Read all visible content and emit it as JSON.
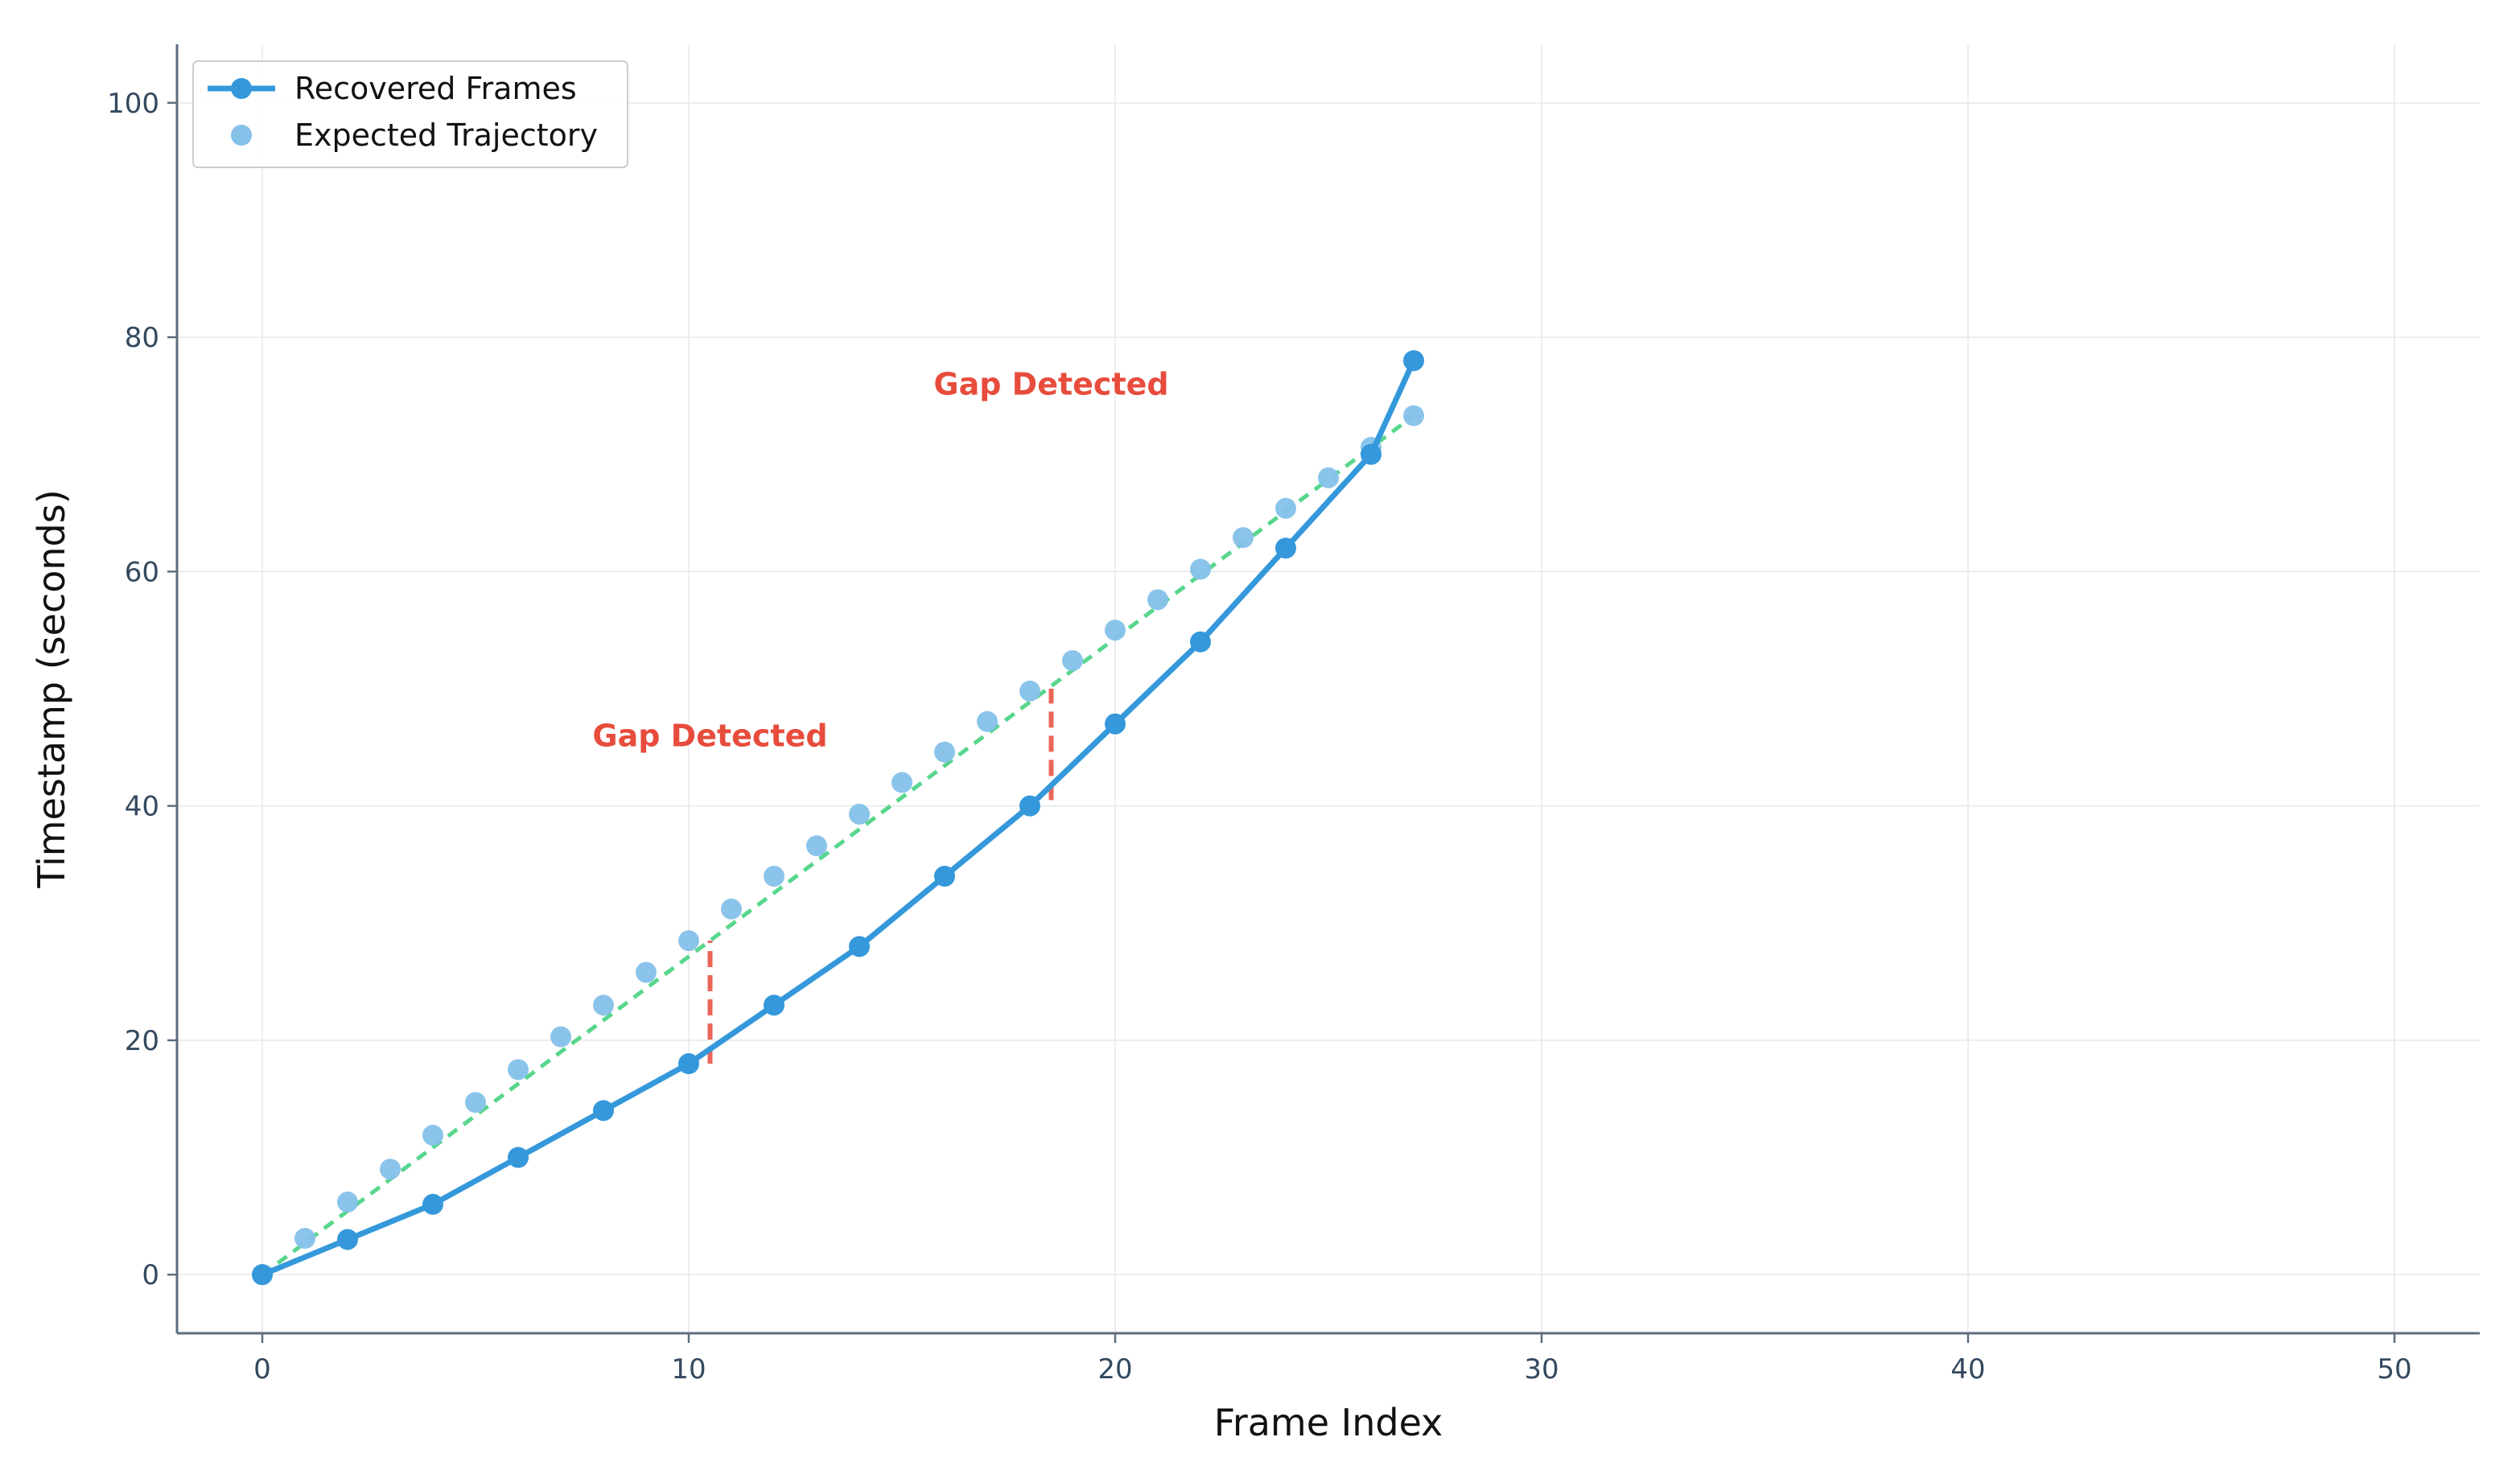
{
  "chart_data": {
    "type": "line",
    "title": "",
    "xlabel": "Frame Index",
    "ylabel": "Timestamp (seconds)",
    "xlim": [
      -2,
      52
    ],
    "ylim": [
      -5,
      105
    ],
    "xticks": [
      0,
      10,
      20,
      30,
      40,
      50
    ],
    "yticks": [
      0,
      20,
      40,
      60,
      80,
      100
    ],
    "grid": true,
    "legend_position": "top-left",
    "series": [
      {
        "name": "Recovered Frames",
        "style": "line+markers",
        "color": "#3498db",
        "x": [
          0,
          2,
          4,
          6,
          8,
          10,
          12,
          14,
          16,
          18,
          20,
          22,
          24,
          26,
          27
        ],
        "y": [
          0,
          3,
          6,
          10,
          14,
          18,
          23,
          28,
          34,
          40,
          47,
          54,
          62,
          70,
          78
        ]
      },
      {
        "name": "Expected Trajectory",
        "style": "markers",
        "color": "#85c1e9",
        "x": [
          0,
          1,
          2,
          3,
          4,
          5,
          6,
          7,
          8,
          9,
          10,
          11,
          12,
          13,
          14,
          15,
          16,
          17,
          18,
          19,
          20,
          21,
          22,
          23,
          24,
          25,
          26,
          27
        ],
        "y": [
          0,
          3.1,
          6.2,
          9.0,
          11.9,
          14.7,
          17.5,
          20.3,
          23.0,
          25.8,
          28.5,
          31.2,
          34.0,
          36.6,
          39.3,
          42.0,
          44.6,
          47.2,
          49.8,
          52.4,
          55.0,
          57.6,
          60.2,
          62.9,
          65.4,
          68.0,
          70.6,
          73.3
        ]
      }
    ],
    "trend_line": {
      "color": "#58d68d",
      "x": [
        0,
        27
      ],
      "y": [
        0,
        73.3
      ]
    },
    "gap_markers": [
      {
        "x": 10.5,
        "y_from": 18,
        "y_to": 28.5,
        "color": "#e74c3c"
      },
      {
        "x": 18.5,
        "y_from": 40.5,
        "y_to": 50,
        "color": "#e74c3c"
      }
    ],
    "annotations": [
      {
        "text": "Gap Detected",
        "x": 10.5,
        "y": 46,
        "color": "#e74c3c"
      },
      {
        "text": "Gap Detected",
        "x": 18.5,
        "y": 76,
        "color": "#e74c3c"
      }
    ]
  }
}
